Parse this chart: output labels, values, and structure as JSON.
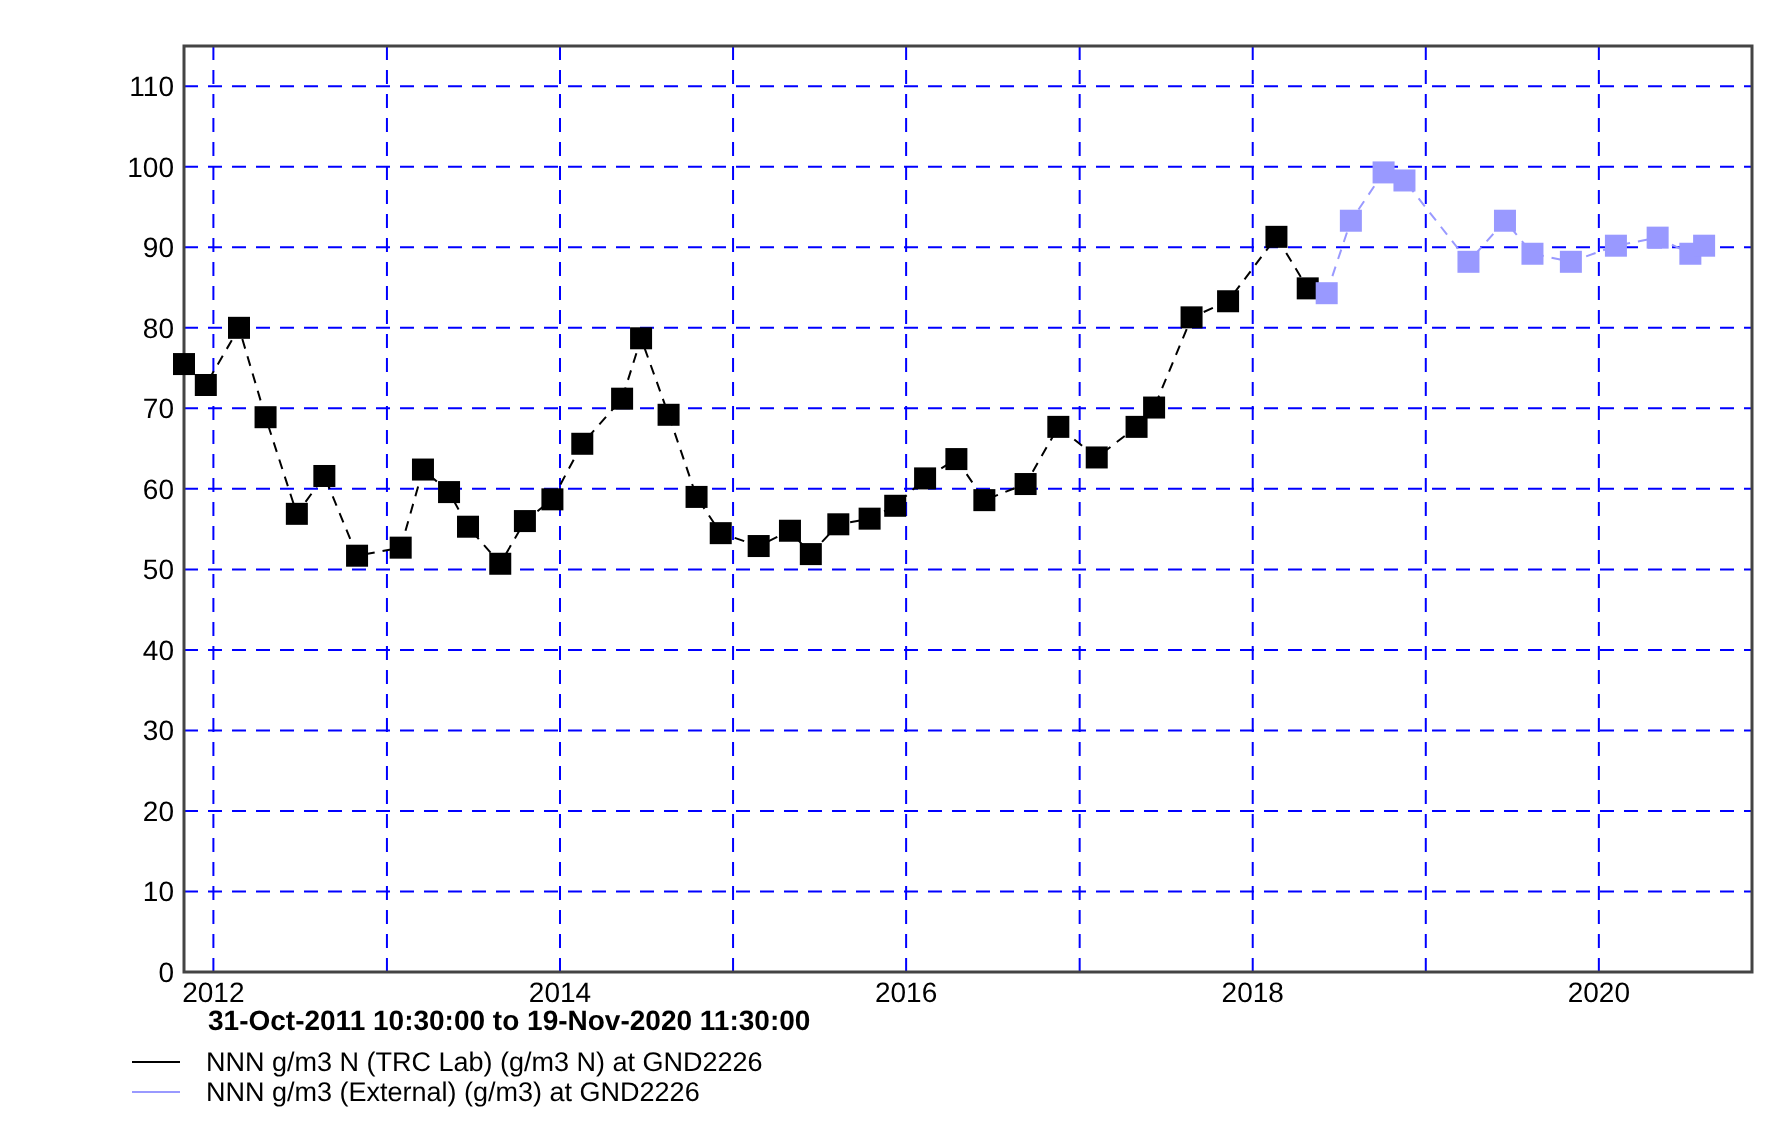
{
  "chart_data": {
    "type": "line",
    "xlabel": "31-Oct-2011 10:30:00 to 19-Nov-2020 11:30:00",
    "xlim": [
      "2011-10-31",
      "2020-11-19"
    ],
    "xticks": [
      {
        "value": "2012",
        "label": "2012"
      },
      {
        "value": "2013",
        "label": null
      },
      {
        "value": "2014",
        "label": "2014"
      },
      {
        "value": "2015",
        "label": null
      },
      {
        "value": "2016",
        "label": "2016"
      },
      {
        "value": "2017",
        "label": null
      },
      {
        "value": "2018",
        "label": "2018"
      },
      {
        "value": "2019",
        "label": null
      },
      {
        "value": "2020",
        "label": "2020"
      }
    ],
    "ylim": [
      0,
      115
    ],
    "yticks": [
      0,
      10,
      20,
      30,
      40,
      50,
      60,
      70,
      80,
      90,
      100,
      110
    ],
    "grid": true,
    "legend": "bottom",
    "marker": "square",
    "line_style": "dashed",
    "series": [
      {
        "name": "NNN g/m3 N (TRC Lab) (g/m3 N) at GND2226",
        "color": "#000000",
        "x": [
          "2011-10-31",
          "2011-12-16",
          "2012-02-24",
          "2012-04-20",
          "2012-06-25",
          "2012-08-22",
          "2012-10-30",
          "2013-01-30",
          "2013-03-18",
          "2013-05-12",
          "2013-06-21",
          "2013-08-28",
          "2013-10-19",
          "2013-12-16",
          "2014-02-17",
          "2014-05-12",
          "2014-06-21",
          "2014-08-18",
          "2014-10-16",
          "2014-12-06",
          "2015-02-24",
          "2015-05-01",
          "2015-06-14",
          "2015-08-11",
          "2015-10-16",
          "2015-12-09",
          "2016-02-10",
          "2016-04-16",
          "2016-06-14",
          "2016-09-09",
          "2016-11-17",
          "2017-02-06",
          "2017-05-01",
          "2017-06-07",
          "2017-08-25",
          "2017-11-10",
          "2018-02-20",
          "2018-04-27"
        ],
        "values": [
          75.5,
          72.9,
          80,
          68.9,
          56.9,
          61.6,
          51.7,
          52.7,
          62.4,
          59.6,
          55.3,
          50.7,
          56,
          58.7,
          65.6,
          71.2,
          78.7,
          69.2,
          59,
          54.5,
          52.9,
          54.8,
          51.9,
          55.6,
          56.3,
          57.9,
          61.3,
          63.7,
          58.6,
          60.6,
          67.7,
          63.9,
          67.7,
          70.1,
          81.3,
          83.3,
          91.3,
          84.9
        ]
      },
      {
        "name": "NNN g/m3 (External) (g/m3) at GND2226",
        "color": "#9999ff",
        "x": [
          "2018-06-06",
          "2018-07-27",
          "2018-10-04",
          "2018-11-17",
          "2019-04-01",
          "2019-06-17",
          "2019-08-14",
          "2019-11-03",
          "2020-02-06",
          "2020-05-04",
          "2020-07-12",
          "2020-08-10"
        ],
        "values": [
          84.3,
          93.3,
          99.3,
          98.3,
          88.2,
          93.3,
          89.2,
          88.2,
          90.2,
          91.2,
          89.2,
          90.2
        ]
      }
    ]
  }
}
